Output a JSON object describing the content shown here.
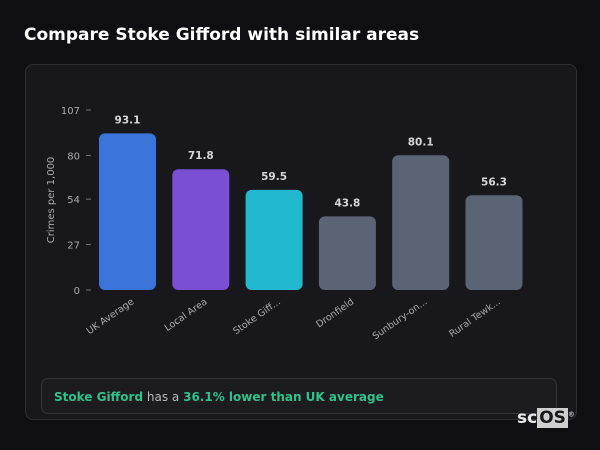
{
  "title": "Compare Stoke Gifford with similar areas",
  "chart_data": {
    "type": "bar",
    "categories": [
      "UK Average",
      "Local Area",
      "Stoke Giff...",
      "Dronfield",
      "Sunbury-on...",
      "Rural Tewk..."
    ],
    "values": [
      93.1,
      71.8,
      59.5,
      43.8,
      80.1,
      56.3
    ],
    "data_labels": [
      "93.1",
      "71.8",
      "59.5",
      "43.8",
      "80.1",
      "56.3"
    ],
    "colors": [
      "#3a74d8",
      "#7b4fd4",
      "#22b8d0",
      "#5b6474",
      "#5b6474",
      "#5b6474"
    ],
    "ylabel": "Crimes per 1,000",
    "xlabel": "",
    "ylim": [
      0,
      107
    ],
    "yticks": [
      0,
      27,
      54,
      80,
      107
    ],
    "grid": false
  },
  "summary": {
    "area": "Stoke Gifford",
    "connector": "has a",
    "comparison": "36.1% lower than UK average",
    "accent": "#2fc28b"
  },
  "logo": {
    "text_sc": "sc",
    "text_os": "OS",
    "mark": "®"
  }
}
